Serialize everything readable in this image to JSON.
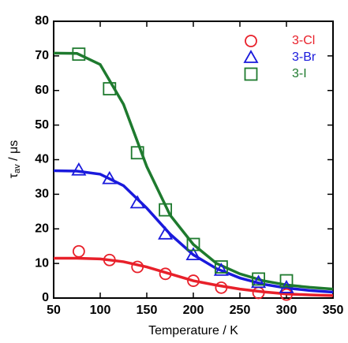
{
  "chart_data": {
    "type": "scatter",
    "x_label": "Temperature / K",
    "y_label": {
      "symbol": "τ",
      "subscript": "av",
      "rest": " / μs"
    },
    "xlim": [
      50,
      350
    ],
    "xticks": [
      50,
      100,
      150,
      200,
      250,
      300,
      350
    ],
    "ylim": [
      0,
      80
    ],
    "yticks": [
      0,
      10,
      20,
      30,
      40,
      50,
      60,
      70,
      80
    ],
    "x": [
      77,
      110,
      140,
      170,
      200,
      230,
      270,
      300
    ],
    "fit_x": [
      50,
      75,
      100,
      125,
      150,
      175,
      200,
      225,
      250,
      275,
      300,
      325,
      350
    ],
    "legend": "upper right",
    "series": [
      {
        "name": "3-Cl",
        "color": "#e8202a",
        "marker": "circle",
        "values": [
          13.5,
          11,
          9,
          7,
          5,
          3,
          1.5,
          1
        ],
        "fit_values": [
          11.5,
          11.5,
          11.3,
          10.5,
          9,
          7,
          5,
          3.7,
          2.6,
          1.8,
          1.2,
          0.9,
          0.7
        ]
      },
      {
        "name": "3-Br",
        "color": "#1a1adc",
        "marker": "triangle",
        "values": [
          37,
          34.5,
          27.5,
          18.5,
          12.5,
          8,
          4.5,
          3
        ],
        "fit_values": [
          36.8,
          36.7,
          35.8,
          32.5,
          26,
          18.5,
          12.5,
          8.5,
          5.8,
          4,
          2.9,
          2.2,
          1.7
        ]
      },
      {
        "name": "3-I",
        "color": "#1e7a2e",
        "marker": "square",
        "values": [
          70.5,
          60.5,
          42,
          25.5,
          15.5,
          9,
          5.5,
          5
        ],
        "fit_values": [
          70.8,
          70.7,
          67.5,
          56,
          38,
          24,
          15.5,
          10,
          7,
          5,
          3.8,
          3.1,
          2.6
        ]
      }
    ]
  }
}
